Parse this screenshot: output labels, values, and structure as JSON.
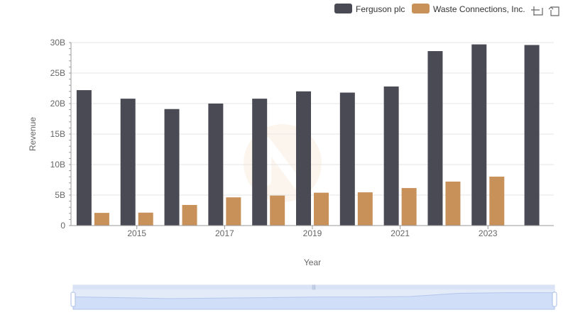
{
  "toolbox": {
    "zoom_icon": "zoom-area-icon",
    "reset_icon": "restore-icon"
  },
  "chart_data": {
    "type": "bar",
    "xlabel": "Year",
    "ylabel": "Revenue",
    "ylim": [
      0,
      30000000000
    ],
    "yticks": [
      "0",
      "5B",
      "10B",
      "15B",
      "20B",
      "25B",
      "30B"
    ],
    "categories": [
      "2014",
      "2015",
      "2016",
      "2017",
      "2018",
      "2019",
      "2020",
      "2021",
      "2022",
      "2023",
      "2024"
    ],
    "xtick_labels_shown": [
      "2015",
      "2017",
      "2019",
      "2021",
      "2023"
    ],
    "legend_position": "top-right",
    "grid": true,
    "series": [
      {
        "name": "Ferguson plc",
        "color": "#4a4a55",
        "values": [
          22200000000,
          20800000000,
          19100000000,
          20000000000,
          20800000000,
          22000000000,
          21800000000,
          22800000000,
          28600000000,
          29700000000,
          29600000000
        ]
      },
      {
        "name": "Waste Connections, Inc.",
        "color": "#c8915a",
        "values": [
          2080000000,
          2120000000,
          3380000000,
          4630000000,
          4920000000,
          5390000000,
          5450000000,
          6150000000,
          7210000000,
          8020000000,
          null
        ]
      }
    ]
  }
}
